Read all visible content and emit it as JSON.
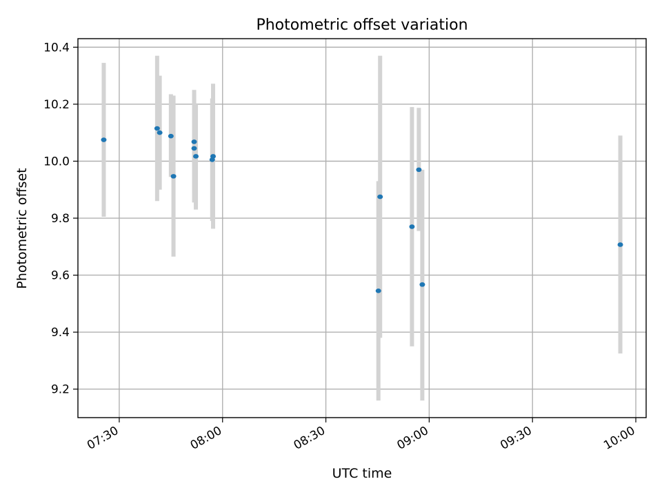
{
  "chart_data": {
    "type": "scatter",
    "title": "Photometric offset variation",
    "xlabel": "UTC time",
    "ylabel": "Photometric offset",
    "x_ticks": [
      "07:30",
      "08:00",
      "08:30",
      "09:00",
      "09:30",
      "10:00"
    ],
    "y_ticks": [
      "9.2",
      "9.4",
      "9.6",
      "9.8",
      "10.0",
      "10.2",
      "10.4"
    ],
    "xlim": [
      "07:18",
      "10:03"
    ],
    "ylim": [
      9.1,
      10.43
    ],
    "grid": true,
    "point_color": "#1f77b4",
    "errorbar_color": "#d3d3d3",
    "points": [
      {
        "x": "07:25:30",
        "y": 10.075,
        "err_low": 9.805,
        "err_high": 10.345
      },
      {
        "x": "07:41:00",
        "y": 10.115,
        "err_low": 9.86,
        "err_high": 10.37
      },
      {
        "x": "07:41:45",
        "y": 10.1,
        "err_low": 9.9,
        "err_high": 10.3
      },
      {
        "x": "07:45:00",
        "y": 10.088,
        "err_low": 9.945,
        "err_high": 10.235
      },
      {
        "x": "07:45:45",
        "y": 9.947,
        "err_low": 9.665,
        "err_high": 10.23
      },
      {
        "x": "07:51:45",
        "y": 10.068,
        "err_low": 9.89,
        "err_high": 10.25
      },
      {
        "x": "07:51:45",
        "y": 10.045,
        "err_low": 9.855,
        "err_high": 10.235
      },
      {
        "x": "07:52:15",
        "y": 10.017,
        "err_low": 9.83,
        "err_high": 10.2
      },
      {
        "x": "07:57:00",
        "y": 10.005,
        "err_low": 9.79,
        "err_high": 10.22
      },
      {
        "x": "07:57:15",
        "y": 10.017,
        "err_low": 9.763,
        "err_high": 10.272
      },
      {
        "x": "08:45:15",
        "y": 9.545,
        "err_low": 9.16,
        "err_high": 9.93
      },
      {
        "x": "08:45:45",
        "y": 9.875,
        "err_low": 9.38,
        "err_high": 10.37
      },
      {
        "x": "08:55:00",
        "y": 9.77,
        "err_low": 9.35,
        "err_high": 10.19
      },
      {
        "x": "08:57:00",
        "y": 9.97,
        "err_low": 9.755,
        "err_high": 10.187
      },
      {
        "x": "08:58:00",
        "y": 9.567,
        "err_low": 9.16,
        "err_high": 9.97
      },
      {
        "x": "09:55:30",
        "y": 9.707,
        "err_low": 9.325,
        "err_high": 10.09
      }
    ]
  }
}
